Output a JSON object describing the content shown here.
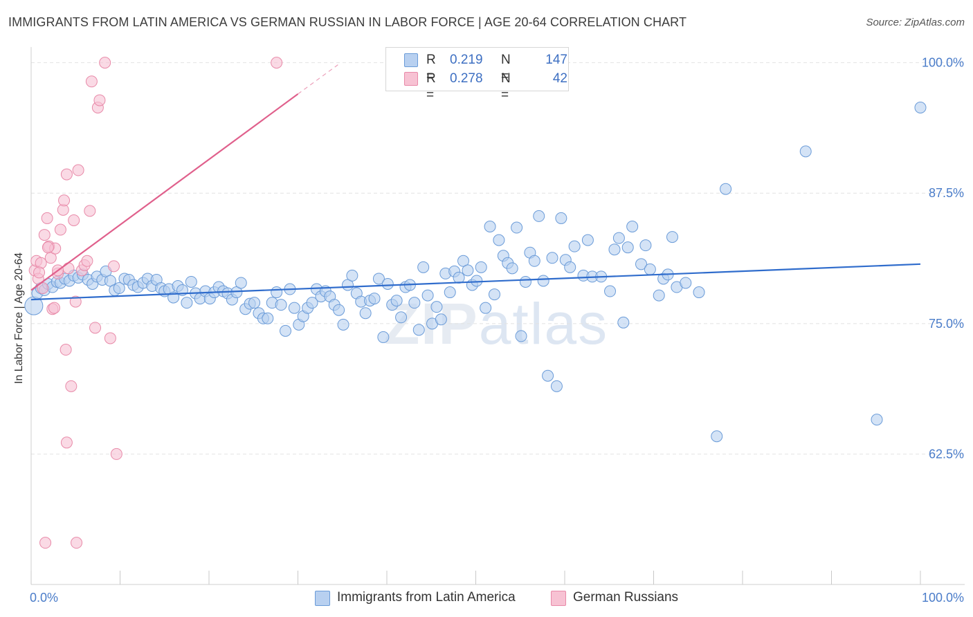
{
  "title": "IMMIGRANTS FROM LATIN AMERICA VS GERMAN RUSSIAN IN LABOR FORCE | AGE 20-64 CORRELATION CHART",
  "source": "Source: ZipAtlas.com",
  "watermark": {
    "zip": "ZIP",
    "atlas": "atlas"
  },
  "colors": {
    "blue_fill": "#b8d0f0",
    "blue_stroke": "#6a9bd8",
    "blue_line": "#2f6ccc",
    "pink_fill": "#f7c2d3",
    "pink_stroke": "#e889a8",
    "pink_line": "#e0608c",
    "axis_text": "#4a7cc9",
    "grid": "#e2e2e2"
  },
  "legend": {
    "rows": [
      {
        "r_label": "R =",
        "r_value": "0.219",
        "n_label": "N =",
        "n_value": "147"
      },
      {
        "r_label": "R =",
        "r_value": "0.278",
        "n_label": "N =",
        "n_value": "42"
      }
    ]
  },
  "chart_data": {
    "type": "scatter",
    "title": "IMMIGRANTS FROM LATIN AMERICA VS GERMAN RUSSIAN IN LABOR FORCE | AGE 20-64 CORRELATION CHART",
    "xlabel": "",
    "ylabel": "In Labor Force | Age 20-64",
    "xlim": [
      0,
      100
    ],
    "ylim": [
      50.0,
      101.5
    ],
    "x_tick_labels": [
      "0.0%",
      "100.0%"
    ],
    "y_ticks": [
      62.5,
      75.0,
      87.5,
      100.0
    ],
    "y_tick_labels": [
      "62.5%",
      "75.0%",
      "87.5%",
      "100.0%"
    ],
    "grid": true,
    "series": [
      {
        "name": "Immigrants from Latin America",
        "color": "#b8d0f0",
        "trend": {
          "x0": 0,
          "y0": 77.3,
          "x1": 100,
          "y1": 80.7
        },
        "points": [
          [
            0.3,
            76.7
          ],
          [
            0.7,
            77.9
          ],
          [
            1.1,
            78.4
          ],
          [
            1.5,
            78.2
          ],
          [
            1.9,
            78.8
          ],
          [
            2.4,
            78.5
          ],
          [
            2.9,
            79.0
          ],
          [
            3.3,
            78.9
          ],
          [
            3.8,
            79.3
          ],
          [
            4.3,
            79.1
          ],
          [
            4.8,
            79.6
          ],
          [
            5.3,
            79.4
          ],
          [
            5.8,
            79.7
          ],
          [
            6.4,
            79.2
          ],
          [
            6.9,
            78.8
          ],
          [
            7.4,
            79.5
          ],
          [
            8.0,
            79.2
          ],
          [
            8.4,
            80.0
          ],
          [
            8.9,
            79.1
          ],
          [
            9.4,
            78.2
          ],
          [
            9.9,
            78.4
          ],
          [
            10.5,
            79.3
          ],
          [
            11.0,
            79.2
          ],
          [
            11.5,
            78.7
          ],
          [
            12.0,
            78.5
          ],
          [
            12.6,
            78.9
          ],
          [
            13.1,
            79.3
          ],
          [
            13.6,
            78.6
          ],
          [
            14.1,
            79.2
          ],
          [
            14.6,
            78.4
          ],
          [
            15.0,
            78.1
          ],
          [
            15.5,
            78.3
          ],
          [
            16.0,
            77.5
          ],
          [
            16.5,
            78.6
          ],
          [
            17.0,
            78.2
          ],
          [
            17.5,
            77.0
          ],
          [
            18.0,
            79.0
          ],
          [
            18.5,
            77.9
          ],
          [
            19.0,
            77.4
          ],
          [
            19.6,
            78.1
          ],
          [
            20.1,
            77.4
          ],
          [
            20.6,
            78.0
          ],
          [
            21.1,
            78.5
          ],
          [
            21.6,
            78.1
          ],
          [
            22.1,
            77.9
          ],
          [
            22.6,
            77.3
          ],
          [
            23.1,
            78.0
          ],
          [
            23.6,
            78.9
          ],
          [
            24.1,
            76.4
          ],
          [
            24.6,
            76.9
          ],
          [
            25.1,
            77.0
          ],
          [
            25.6,
            76.0
          ],
          [
            26.1,
            75.5
          ],
          [
            26.6,
            75.5
          ],
          [
            27.1,
            77.0
          ],
          [
            27.6,
            78.0
          ],
          [
            28.1,
            76.8
          ],
          [
            28.6,
            74.3
          ],
          [
            29.1,
            78.3
          ],
          [
            29.6,
            76.5
          ],
          [
            30.1,
            74.9
          ],
          [
            30.6,
            75.7
          ],
          [
            31.1,
            76.5
          ],
          [
            31.6,
            77.0
          ],
          [
            32.1,
            78.3
          ],
          [
            32.6,
            77.6
          ],
          [
            33.1,
            78.1
          ],
          [
            33.6,
            77.6
          ],
          [
            34.1,
            76.8
          ],
          [
            34.6,
            76.3
          ],
          [
            35.1,
            74.9
          ],
          [
            35.6,
            78.7
          ],
          [
            36.1,
            79.6
          ],
          [
            36.6,
            77.9
          ],
          [
            37.1,
            77.1
          ],
          [
            37.6,
            76.0
          ],
          [
            38.1,
            77.2
          ],
          [
            38.6,
            77.4
          ],
          [
            39.1,
            79.3
          ],
          [
            39.6,
            73.7
          ],
          [
            40.1,
            78.8
          ],
          [
            40.6,
            76.8
          ],
          [
            41.1,
            77.2
          ],
          [
            41.6,
            75.6
          ],
          [
            42.1,
            78.5
          ],
          [
            42.6,
            78.7
          ],
          [
            43.1,
            77.0
          ],
          [
            43.6,
            74.4
          ],
          [
            44.1,
            80.4
          ],
          [
            44.6,
            77.7
          ],
          [
            45.1,
            75.0
          ],
          [
            45.6,
            76.6
          ],
          [
            46.1,
            75.4
          ],
          [
            46.6,
            79.8
          ],
          [
            47.1,
            78.0
          ],
          [
            47.6,
            80.0
          ],
          [
            48.1,
            79.4
          ],
          [
            48.6,
            81.0
          ],
          [
            49.1,
            80.1
          ],
          [
            49.6,
            78.7
          ],
          [
            50.1,
            79.1
          ],
          [
            50.6,
            80.4
          ],
          [
            51.1,
            76.5
          ],
          [
            51.6,
            84.3
          ],
          [
            52.1,
            77.8
          ],
          [
            52.6,
            83.0
          ],
          [
            53.1,
            81.5
          ],
          [
            53.6,
            80.8
          ],
          [
            54.1,
            80.3
          ],
          [
            54.6,
            84.2
          ],
          [
            55.1,
            73.8
          ],
          [
            55.6,
            79.0
          ],
          [
            56.1,
            81.8
          ],
          [
            56.6,
            81.0
          ],
          [
            57.1,
            85.3
          ],
          [
            57.6,
            79.1
          ],
          [
            58.1,
            70.0
          ],
          [
            58.6,
            81.3
          ],
          [
            59.1,
            69.0
          ],
          [
            59.6,
            85.1
          ],
          [
            60.1,
            81.1
          ],
          [
            60.6,
            80.4
          ],
          [
            61.1,
            82.4
          ],
          [
            62.1,
            79.6
          ],
          [
            62.6,
            83.0
          ],
          [
            63.1,
            79.5
          ],
          [
            64.1,
            79.5
          ],
          [
            65.1,
            78.1
          ],
          [
            65.6,
            82.1
          ],
          [
            66.1,
            83.2
          ],
          [
            66.6,
            75.1
          ],
          [
            67.1,
            82.3
          ],
          [
            67.6,
            84.3
          ],
          [
            68.6,
            80.7
          ],
          [
            69.1,
            82.5
          ],
          [
            69.6,
            80.2
          ],
          [
            70.6,
            77.7
          ],
          [
            71.1,
            79.3
          ],
          [
            71.6,
            79.7
          ],
          [
            72.1,
            83.3
          ],
          [
            72.6,
            78.5
          ],
          [
            73.6,
            78.9
          ],
          [
            75.1,
            78.0
          ],
          [
            77.1,
            64.2
          ],
          [
            78.1,
            87.9
          ],
          [
            87.1,
            91.5
          ],
          [
            95.1,
            65.8
          ],
          [
            100.0,
            95.7
          ]
        ]
      },
      {
        "name": "German Russians",
        "color": "#f7c2d3",
        "trend": {
          "x0": 0,
          "y0": 78.2,
          "x1": 30,
          "y1": 97.0,
          "dash_to_x": 34.5,
          "dash_to_y": 99.8
        },
        "points": [
          [
            0.4,
            80.1
          ],
          [
            0.6,
            81.0
          ],
          [
            0.8,
            79.3
          ],
          [
            1.1,
            80.8
          ],
          [
            1.3,
            78.4
          ],
          [
            1.5,
            83.5
          ],
          [
            1.8,
            85.1
          ],
          [
            2.0,
            82.4
          ],
          [
            2.2,
            81.3
          ],
          [
            2.4,
            76.4
          ],
          [
            2.6,
            76.5
          ],
          [
            2.7,
            82.2
          ],
          [
            3.0,
            79.8
          ],
          [
            3.3,
            84.0
          ],
          [
            3.6,
            85.9
          ],
          [
            3.7,
            86.8
          ],
          [
            3.9,
            72.5
          ],
          [
            4.0,
            89.3
          ],
          [
            4.2,
            80.3
          ],
          [
            4.5,
            69.0
          ],
          [
            4.8,
            84.9
          ],
          [
            5.0,
            77.1
          ],
          [
            5.3,
            89.7
          ],
          [
            5.7,
            80.1
          ],
          [
            6.0,
            80.6
          ],
          [
            6.3,
            81.0
          ],
          [
            6.6,
            85.8
          ],
          [
            6.8,
            98.2
          ],
          [
            7.2,
            74.6
          ],
          [
            7.5,
            95.7
          ],
          [
            7.7,
            96.4
          ],
          [
            8.3,
            100.0
          ],
          [
            8.9,
            73.6
          ],
          [
            9.3,
            80.5
          ],
          [
            1.6,
            54.0
          ],
          [
            5.1,
            54.0
          ],
          [
            4.0,
            63.6
          ],
          [
            9.6,
            62.5
          ],
          [
            27.6,
            100.0
          ],
          [
            0.9,
            79.9
          ],
          [
            1.9,
            82.3
          ],
          [
            3.0,
            80.1
          ]
        ]
      }
    ]
  },
  "bottom_legend": [
    {
      "label": "Immigrants from Latin America"
    },
    {
      "label": "German Russians"
    }
  ]
}
